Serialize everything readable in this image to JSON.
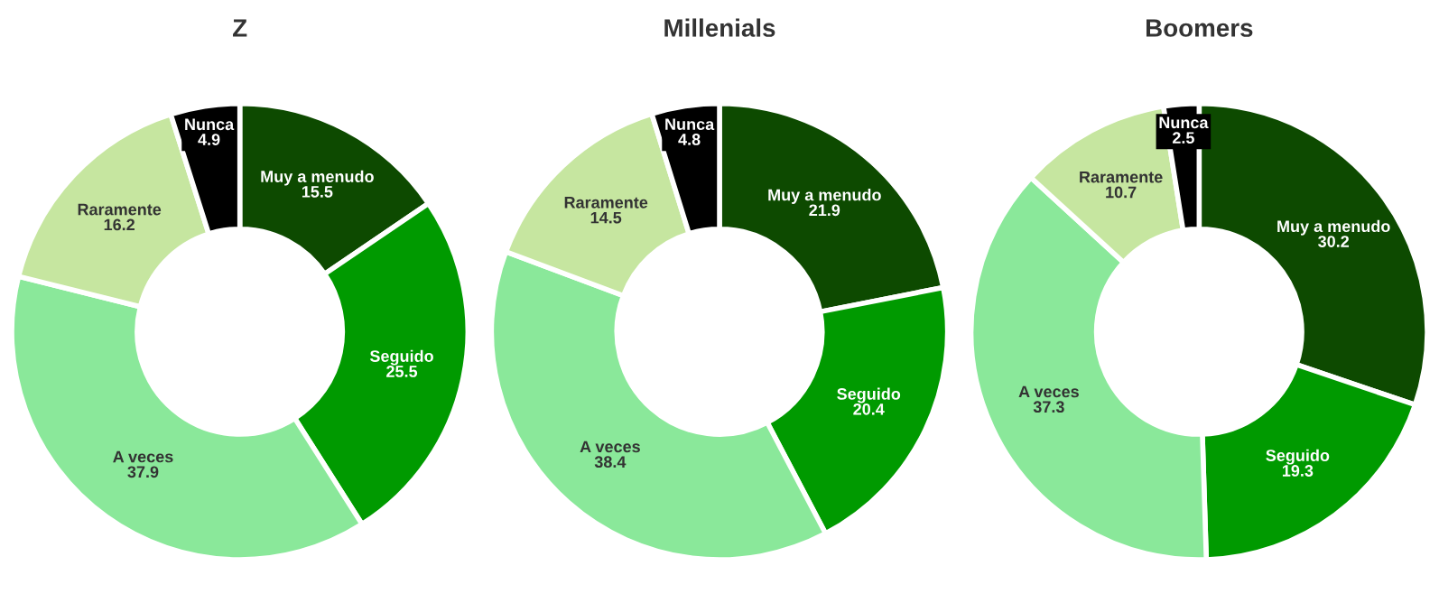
{
  "chart_data": [
    {
      "type": "donut",
      "title": "Z",
      "categories": [
        "Muy a menudo",
        "Seguido",
        "A veces",
        "Raramente",
        "Nunca"
      ],
      "values": [
        15.5,
        25.5,
        37.9,
        16.2,
        4.9
      ],
      "colors": [
        "#0d4a00",
        "#009a00",
        "#8ae89a",
        "#c6e6a0",
        "#000000"
      ],
      "data_labels": true
    },
    {
      "type": "donut",
      "title": "Millenials",
      "categories": [
        "Muy a menudo",
        "Seguido",
        "A veces",
        "Raramente",
        "Nunca"
      ],
      "values": [
        21.9,
        20.4,
        38.4,
        14.5,
        4.8
      ],
      "colors": [
        "#0d4a00",
        "#009a00",
        "#8ae89a",
        "#c6e6a0",
        "#000000"
      ],
      "data_labels": true
    },
    {
      "type": "donut",
      "title": "Boomers",
      "categories": [
        "Muy a menudo",
        "Seguido",
        "A veces",
        "Raramente",
        "Nunca"
      ],
      "values": [
        30.2,
        19.3,
        37.3,
        10.7,
        2.5
      ],
      "colors": [
        "#0d4a00",
        "#009a00",
        "#8ae89a",
        "#c6e6a0",
        "#000000"
      ],
      "data_labels": true
    }
  ]
}
